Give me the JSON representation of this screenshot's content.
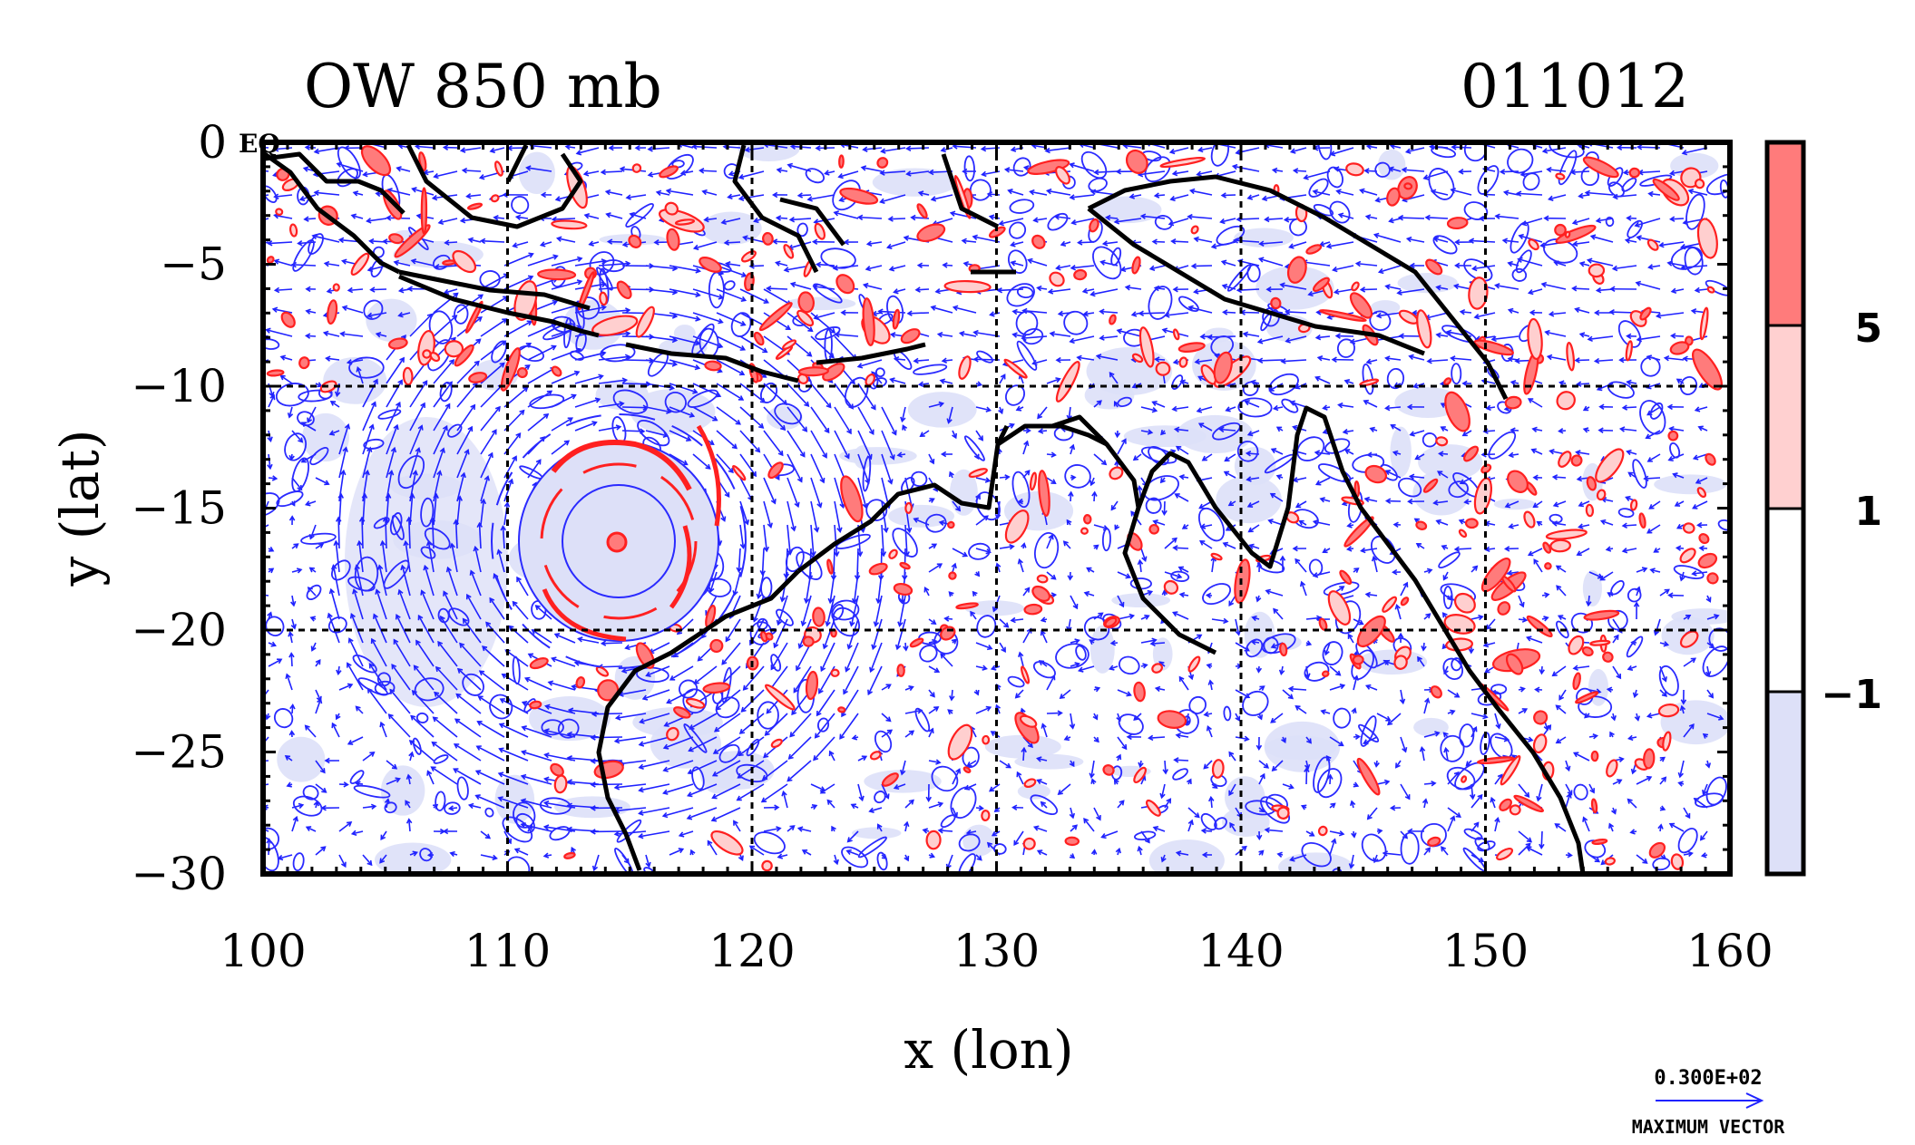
{
  "header": {
    "title": "OW 850 mb",
    "date_code": "011012"
  },
  "map": {
    "lon_range": [
      100,
      160
    ],
    "lat_range": [
      -30,
      0
    ],
    "xlabel": "x (lon)",
    "ylabel": "y (lat)",
    "x_ticks": [
      "100",
      "110",
      "120",
      "130",
      "140",
      "150",
      "160"
    ],
    "y_ticks": [
      "0",
      "−5",
      "−10",
      "−15",
      "−20",
      "−25",
      "−30"
    ],
    "eq_label": "EQ",
    "grid": true,
    "colors": {
      "coast": "#000000",
      "vector": "#1f22ff",
      "positive_contour": "#ff2020",
      "negative_contour": "#2a2aff",
      "shade_strong_pos": "#ff7b7b",
      "shade_weak_pos": "#ffcfcf",
      "shade_neg": "#dde0f8"
    }
  },
  "colorbar": {
    "labels": [
      "5",
      "1",
      "−1"
    ],
    "segment_colors": [
      "#ff7b7b",
      "#ffd0d0",
      "#ffffff",
      "#dde0f8"
    ]
  },
  "vector_legend": {
    "magnitude": "0.300E+02",
    "caption": "MAXIMUM VECTOR"
  }
}
